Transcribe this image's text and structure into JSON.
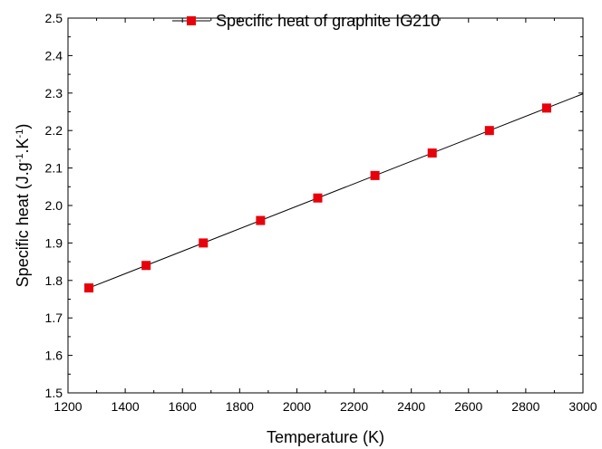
{
  "chart_data": {
    "type": "line",
    "xlabel": "Temperature (K)",
    "ylabel_parts": [
      "Specific heat (J.g",
      "-1",
      ".K",
      "-1",
      ")"
    ],
    "xlim": [
      1200,
      3000
    ],
    "ylim": [
      1.5,
      2.5
    ],
    "x_ticks": [
      1200,
      1400,
      1600,
      1800,
      2000,
      2200,
      2400,
      2600,
      2800,
      3000
    ],
    "y_ticks": [
      "1.5",
      "1.6",
      "1.7",
      "1.8",
      "1.9",
      "2.0",
      "2.1",
      "2.2",
      "2.3",
      "2.4",
      "2.5"
    ],
    "legend_position": "top-center",
    "grid": false,
    "series": [
      {
        "name": "Specific heat of graphite IG210",
        "color": "#e8000b",
        "line_color": "#000000",
        "marker": "square",
        "points": [
          {
            "x": 1273,
            "y": 1.78
          },
          {
            "x": 1473,
            "y": 1.84
          },
          {
            "x": 1673,
            "y": 1.9
          },
          {
            "x": 1873,
            "y": 1.96
          },
          {
            "x": 2073,
            "y": 2.02
          },
          {
            "x": 2273,
            "y": 2.08
          },
          {
            "x": 2473,
            "y": 2.14
          },
          {
            "x": 2673,
            "y": 2.2
          },
          {
            "x": 2873,
            "y": 2.26
          }
        ],
        "fit_line": [
          {
            "x": 1273,
            "y": 1.78
          },
          {
            "x": 3000,
            "y": 2.298
          }
        ]
      }
    ]
  }
}
